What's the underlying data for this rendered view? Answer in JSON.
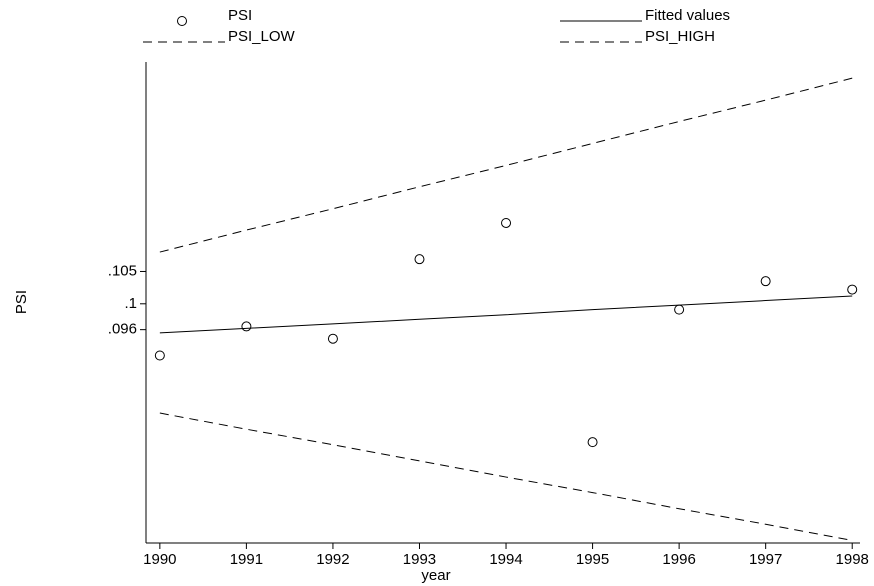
{
  "chart_data": {
    "type": "line",
    "x_label": "year",
    "y_label": "PSI",
    "x": [
      1990,
      1991,
      1992,
      1993,
      1994,
      1995,
      1996,
      1997,
      1998
    ],
    "series": [
      {
        "name": "PSI",
        "color": "#000000",
        "style": "markers",
        "values": [
          0.092,
          0.0965,
          0.0946,
          0.1069,
          0.1125,
          0.0786,
          0.0991,
          0.1035,
          0.1022
        ]
      },
      {
        "name": "Fitted values",
        "color": "#000000",
        "style": "solid",
        "values": [
          0.0955,
          0.0962,
          0.0969,
          0.0976,
          0.0983,
          0.0991,
          0.0998,
          0.1005,
          0.1012
        ]
      },
      {
        "name": "PSI_LOW",
        "color": "#000000",
        "style": "dashed",
        "values": [
          0.0831,
          0.0806,
          0.0782,
          0.0757,
          0.0732,
          0.0708,
          0.0683,
          0.0659,
          0.0634
        ]
      },
      {
        "name": "PSI_HIGH",
        "color": "#000000",
        "style": "dashed",
        "values": [
          0.108,
          0.1114,
          0.1147,
          0.1181,
          0.1214,
          0.1248,
          0.1282,
          0.1315,
          0.1349
        ]
      }
    ],
    "xlim": [
      1989.84,
      1998.09
    ],
    "xticks": [
      1990,
      1991,
      1992,
      1993,
      1994,
      1995,
      1996,
      1997,
      1998
    ],
    "ylim": [
      0.063,
      0.1374
    ],
    "yticks": [
      {
        "value": 0.096,
        "label": ".096"
      },
      {
        "value": 0.1,
        "label": ".1"
      },
      {
        "value": 0.105,
        "label": ".105"
      }
    ],
    "legend": "top",
    "grid": false
  }
}
